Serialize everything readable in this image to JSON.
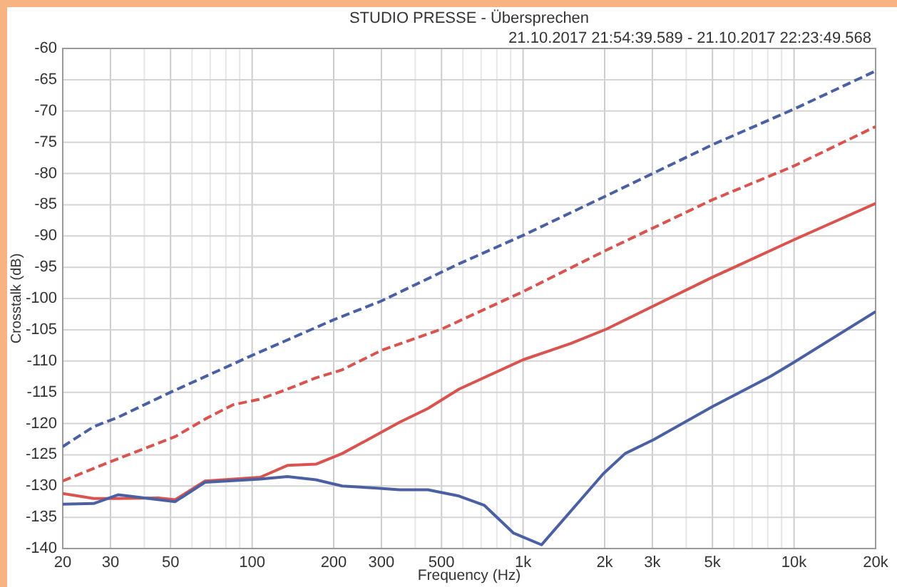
{
  "chart_data": {
    "type": "line",
    "title": "STUDIO PRESSE - Übersprechen",
    "subtitle": "21.10.2017 21:54:39.589 - 21.10.2017 22:23:49.568",
    "xlabel": "Frequency (Hz)",
    "ylabel": "Crosstalk (dB)",
    "log": "x",
    "grid": true,
    "xlim": [
      20,
      20000
    ],
    "ylim": [
      -140,
      -60
    ],
    "xticks": [
      20,
      30,
      {
        "value": 40,
        "label": null
      },
      50,
      {
        "value": 60,
        "label": null
      },
      {
        "value": 70,
        "label": null
      },
      {
        "value": 80,
        "label": null
      },
      {
        "value": 90,
        "label": null
      },
      100,
      200,
      300,
      {
        "value": 400,
        "label": null
      },
      500,
      {
        "value": 600,
        "label": null
      },
      {
        "value": 700,
        "label": null
      },
      {
        "value": 800,
        "label": null
      },
      {
        "value": 900,
        "label": null
      },
      {
        "value": 1000,
        "label": "1k"
      },
      {
        "value": 2000,
        "label": "2k"
      },
      {
        "value": 3000,
        "label": "3k"
      },
      {
        "value": 4000,
        "label": null
      },
      {
        "value": 5000,
        "label": "5k"
      },
      {
        "value": 6000,
        "label": null
      },
      {
        "value": 7000,
        "label": null
      },
      {
        "value": 8000,
        "label": null
      },
      {
        "value": 9000,
        "label": null
      },
      {
        "value": 10000,
        "label": "10k"
      },
      {
        "value": 20000,
        "label": "20k"
      }
    ],
    "yticks": [
      -140,
      -135,
      -130,
      -125,
      -120,
      -115,
      -110,
      -105,
      -100,
      -95,
      -90,
      -85,
      -80,
      -75,
      -70,
      -65,
      -60
    ],
    "series": [
      {
        "color": "#4a60a3",
        "line_style": "dashed",
        "x": [
          20,
          26,
          32,
          50,
          100,
          200,
          300,
          570,
          1000,
          2000,
          5000,
          10000,
          20000
        ],
        "values": [
          -123.7,
          -120.5,
          -119.0,
          -115.0,
          -109.1,
          -103.4,
          -100.4,
          -94.6,
          -89.9,
          -83.7,
          -75.4,
          -69.7,
          -63.6
        ]
      },
      {
        "color": "#d9534f",
        "line_style": "dashed",
        "x": [
          20,
          30,
          52,
          67,
          85,
          107,
          135,
          172,
          215,
          300,
          500,
          1000,
          2000,
          5000,
          10000,
          20000
        ],
        "values": [
          -129.2,
          -126.1,
          -122.1,
          -119.3,
          -117.0,
          -116.1,
          -114.5,
          -112.7,
          -111.4,
          -108.3,
          -104.9,
          -98.9,
          -92.4,
          -84.2,
          -78.8,
          -72.5
        ]
      },
      {
        "color": "#d9534f",
        "line_style": "solid",
        "x": [
          20,
          26,
          32,
          45,
          52,
          67,
          107,
          135,
          172,
          215,
          283,
          350,
          445,
          580,
          1000,
          1500,
          2030,
          3030,
          5000,
          10000,
          20000
        ],
        "values": [
          -131.2,
          -132.0,
          -132.0,
          -131.9,
          -132.2,
          -129.2,
          -128.6,
          -126.7,
          -126.5,
          -124.8,
          -122.0,
          -119.8,
          -117.6,
          -114.5,
          -109.8,
          -107.2,
          -104.9,
          -101.2,
          -96.6,
          -90.6,
          -84.8
        ]
      },
      {
        "color": "#4a60a3",
        "line_style": "solid",
        "x": [
          20,
          26,
          32,
          52,
          67,
          107,
          135,
          172,
          215,
          283,
          350,
          445,
          580,
          720,
          920,
          1170,
          1980,
          2380,
          3030,
          5000,
          8150,
          10000,
          20000
        ],
        "values": [
          -132.9,
          -132.8,
          -131.4,
          -132.5,
          -129.4,
          -128.9,
          -128.5,
          -129.0,
          -130.0,
          -130.3,
          -130.6,
          -130.6,
          -131.6,
          -133.1,
          -137.5,
          -139.4,
          -128.0,
          -124.8,
          -122.6,
          -117.3,
          -112.5,
          -110.2,
          -102.1
        ]
      }
    ]
  }
}
